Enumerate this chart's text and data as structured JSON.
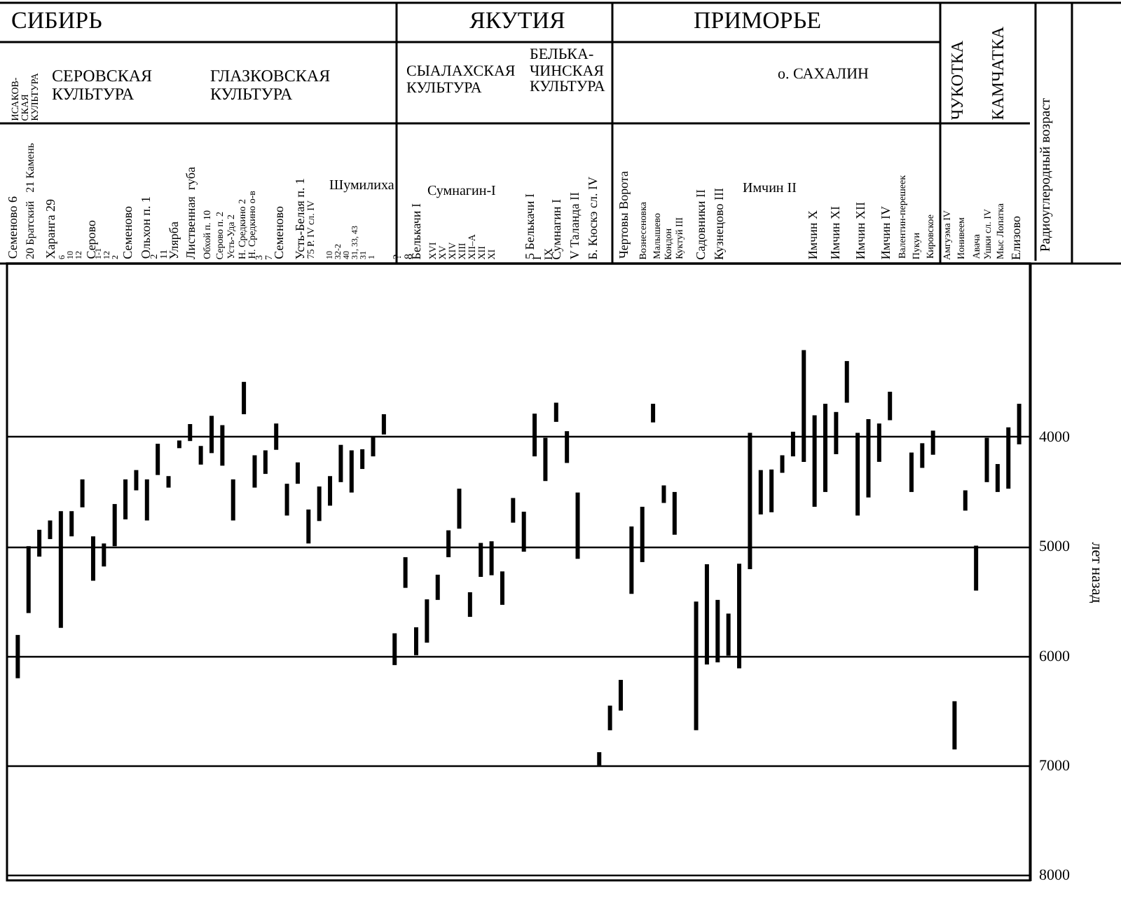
{
  "chart_data": {
    "type": "bar",
    "ylabel": "лет назад",
    "categories": [
      null,
      null,
      null,
      null,
      null,
      null,
      null,
      null,
      null,
      null,
      null,
      null,
      null,
      null,
      null,
      null,
      null,
      null,
      null,
      null,
      null,
      null,
      null,
      null,
      null,
      null,
      null,
      null,
      null,
      null,
      null,
      null,
      null,
      null,
      null,
      null,
      null,
      null,
      null,
      null,
      null,
      null,
      null,
      null,
      null,
      null,
      null,
      null,
      null,
      null,
      null,
      null,
      null,
      null,
      null,
      null,
      null,
      null,
      null,
      null,
      null,
      null,
      null,
      null,
      null,
      null,
      null,
      null,
      null,
      null,
      null,
      null,
      null,
      null,
      null,
      null,
      null,
      null,
      null,
      null,
      null,
      null,
      null,
      null,
      null,
      null,
      null,
      null,
      null,
      null,
      null,
      null,
      null,
      null
    ],
    "series": [
      {
        "color": "#000000",
        "base": [
          5810,
          5000,
          4850,
          4765,
          4680,
          4680,
          4390,
          4910,
          4975,
          4615,
          4390,
          4305,
          4390,
          4065,
          4360,
          4035,
          3885,
          4085,
          3810,
          3895,
          4390,
          3500,
          4170,
          4125,
          3880,
          4430,
          4235,
          4665,
          4455,
          4360,
          4075,
          4125,
          4115,
          4000,
          3795,
          5795,
          5100,
          5740,
          5485,
          5260,
          4855,
          4475,
          5420,
          4970,
          4955,
          5230,
          4560,
          4685,
          3790,
          4010,
          3690,
          3950,
          4510,
          null,
          6880,
          6455,
          6220,
          4820,
          4640,
          3700,
          4445,
          4505,
          null,
          5505,
          5165,
          5490,
          5615,
          5160,
          3965,
          4305,
          4300,
          4170,
          3955,
          3210,
          3805,
          3700,
          3775,
          3310,
          3965,
          3840,
          3880,
          3590,
          null,
          4145,
          4060,
          3945,
          null,
          6415,
          4490,
          4995,
          4010,
          4250,
          3915,
          3700
        ],
        "values": [
          395,
          610,
          245,
          170,
          1065,
          230,
          255,
          405,
          210,
          385,
          365,
          185,
          375,
          285,
          105,
          70,
          155,
          170,
          340,
          370,
          375,
          295,
          295,
          215,
          240,
          290,
          195,
          310,
          315,
          270,
          340,
          385,
          180,
          180,
          185,
          290,
          280,
          255,
          395,
          230,
          245,
          365,
          225,
          310,
          310,
          305,
          225,
          365,
          390,
          395,
          175,
          290,
          605,
          null,
          120,
          225,
          280,
          615,
          505,
          170,
          160,
          390,
          null,
          1175,
          915,
          570,
          385,
          955,
          1245,
          405,
          390,
          160,
          225,
          1020,
          835,
          805,
          385,
          380,
          755,
          715,
          350,
          260,
          null,
          360,
          225,
          220,
          null,
          440,
          185,
          410,
          405,
          255,
          560,
          370
        ]
      }
    ],
    "ylim": [
      8050,
      2420
    ],
    "yticks": [
      4000,
      5000,
      6000,
      7000,
      8000
    ],
    "grid": "y",
    "tick_labels": "y",
    "annotations": [
      "СИБИРЬ",
      "ЯКУТИЯ",
      "ПРИМОРЬЕ",
      "ЧУКОТКА",
      "КАМЧАТКА",
      "Радиоуглеродный возраст",
      "ИСАКОВ-\nСКАЯ\nКУЛЬТУРА",
      "СЕРОВСКАЯ\nКУЛЬТУРА",
      "ГЛАЗКОВСКАЯ\nКУЛЬТУРА",
      "СЫАЛАХСКАЯ\nКУЛЬТУРА",
      "БЕЛЬКА-\nЧИНСКАЯ\nКУЛЬТУРА",
      "о. САХАЛИН",
      "Шумилиха",
      "Сумнагин-I",
      "Имчин II",
      "Семеново 6",
      "20 Братский   21 Камень",
      "Харанга 29",
      "6\n10\n12",
      "Серово",
      "1-1\n12\n2",
      "Семеново",
      "Ольхон п. 1",
      "2\n11",
      "Улярба",
      "Лиственная  губа",
      "Обхой п. 10",
      "Серово п. 2",
      "Усть-Уда 2",
      "Н. Средкино 2",
      "Н. Средкино о-в",
      "3\n7",
      "Семеново",
      "Усть-Белая п. 1",
      "75 Р. IV сл. IV",
      "10\n32-2\n40\n31, 33, 43\n31\n1",
      "?\n8",
      "Белькачи I",
      "XVI\nXV\nXIV\nXIII\nXII–А\nXII\nXI",
      "5 Белькачи I",
      "I\nIX",
      "Сумнагин I",
      "V Таланда II",
      "Б. Кюскэ сл. IV",
      "Чертовы Ворота",
      "Вознесеновка",
      "Малышево",
      "Кондон",
      "Куктуй III",
      "Садовники II",
      "Кузнецово III",
      "Имчин X",
      "Имчин XI",
      "Имчин XII",
      "Имчин IV",
      "Валентин-перешеек",
      "Пукуи",
      "Кировское",
      "Амгуэма IV",
      "Ионивеем",
      "Авача",
      "Ушки сл. IV",
      "Мыс Лопатка",
      "Елизово"
    ]
  }
}
